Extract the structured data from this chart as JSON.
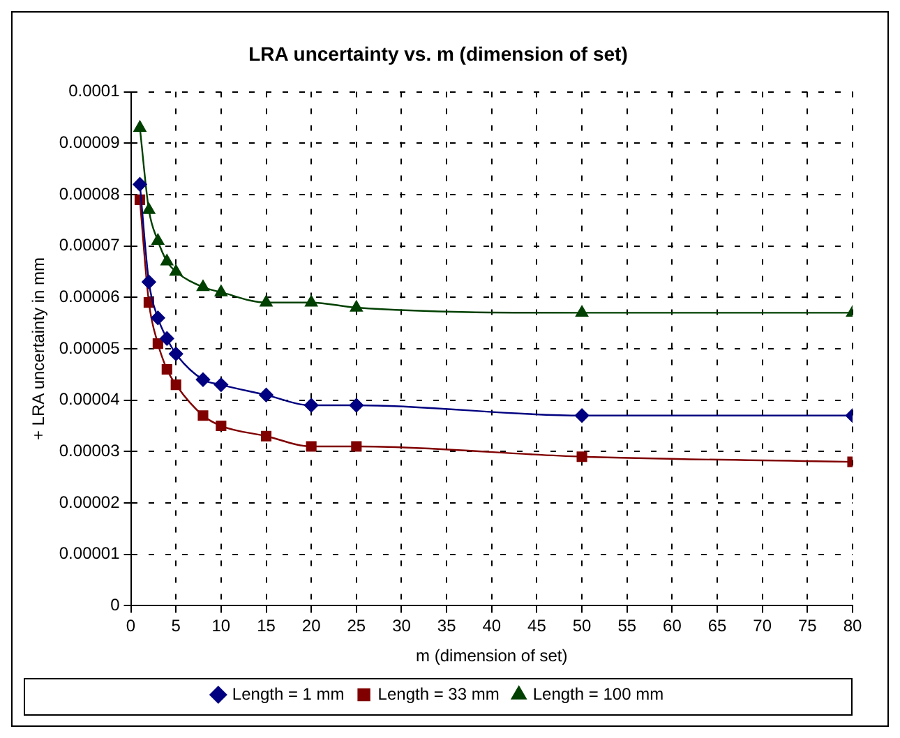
{
  "chart_data": {
    "type": "line",
    "title": "LRA uncertainty vs. m (dimension of set)",
    "xlabel": "m (dimension of set)",
    "ylabel": "+ LRA uncertainty in mm",
    "x": [
      1,
      2,
      3,
      4,
      5,
      8,
      10,
      15,
      20,
      25,
      50,
      80
    ],
    "series": [
      {
        "name": "Length = 1 mm",
        "color": "#000080",
        "marker": "diamond",
        "values": [
          8.2e-05,
          6.3e-05,
          5.6e-05,
          5.2e-05,
          4.9e-05,
          4.4e-05,
          4.3e-05,
          4.1e-05,
          3.9e-05,
          3.9e-05,
          3.7e-05,
          3.7e-05
        ]
      },
      {
        "name": "Length = 33 mm",
        "color": "#800000",
        "marker": "square",
        "values": [
          7.9e-05,
          5.9e-05,
          5.1e-05,
          4.6e-05,
          4.3e-05,
          3.7e-05,
          3.5e-05,
          3.3e-05,
          3.1e-05,
          3.1e-05,
          2.9e-05,
          2.8e-05
        ]
      },
      {
        "name": "Length = 100 mm",
        "color": "#004000",
        "marker": "triangle",
        "values": [
          9.3e-05,
          7.7e-05,
          7.1e-05,
          6.7e-05,
          6.5e-05,
          6.2e-05,
          6.1e-05,
          5.9e-05,
          5.9e-05,
          5.8e-05,
          5.7e-05,
          5.7e-05
        ]
      }
    ],
    "xlim": [
      0,
      80
    ],
    "xticks": [
      0,
      5,
      10,
      15,
      20,
      25,
      30,
      35,
      40,
      45,
      50,
      55,
      60,
      65,
      70,
      75,
      80
    ],
    "ylim": [
      0,
      0.0001
    ],
    "yticks": [
      0,
      {
        "value": 1e-05,
        "label": "0.00001"
      },
      {
        "value": 2e-05,
        "label": "0.00002"
      },
      {
        "value": 3e-05,
        "label": "0.00003"
      },
      {
        "value": 4e-05,
        "label": "0.00004"
      },
      {
        "value": 5e-05,
        "label": "0.00005"
      },
      {
        "value": 6e-05,
        "label": "0.00006"
      },
      {
        "value": 7e-05,
        "label": "0.00007"
      },
      {
        "value": 8e-05,
        "label": "0.00008"
      },
      {
        "value": 9e-05,
        "label": "0.00009"
      },
      {
        "value": 0.0001,
        "label": "0.0001"
      }
    ],
    "grid": true,
    "legend": "bottom",
    "line_style": "solid"
  }
}
